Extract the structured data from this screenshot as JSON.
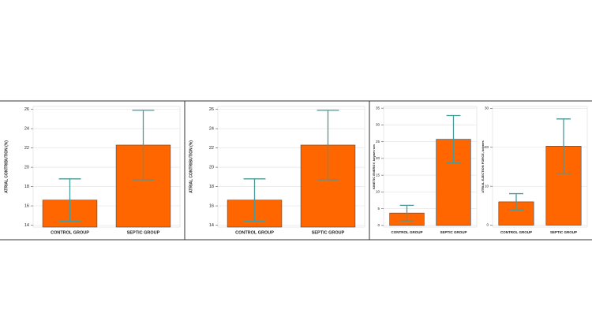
{
  "chart_data": [
    {
      "type": "bar",
      "ylabel": "ATRIAL CONTRIBUTION (%)",
      "categories": [
        "CONTROL GROUP",
        "SEPTIC GROUP"
      ],
      "values": [
        16.6,
        22.3
      ],
      "errors": [
        2.2,
        3.6
      ],
      "color": "#ff6600",
      "error_color": "#4a9a9a",
      "ylim": [
        13.8,
        26.3
      ],
      "yticks": [
        14,
        16,
        18,
        20,
        22,
        24,
        26
      ],
      "grid": true
    },
    {
      "type": "bar",
      "ylabel": "ATRIAL CONTRIBUTION (%)",
      "categories": [
        "CONTROL GROUP",
        "SEPTIC GROUP"
      ],
      "values": [
        16.6,
        22.3
      ],
      "errors": [
        2.2,
        3.6
      ],
      "color": "#ff6600",
      "error_color": "#4a9a9a",
      "ylim": [
        13.8,
        26.3
      ],
      "yticks": [
        14,
        16,
        18,
        20,
        22,
        24,
        26
      ],
      "grid": true
    },
    {
      "type": "bar",
      "ylabel": "KINETIC ENERGY, kdynes·cm",
      "categories": [
        "CONTROL GROUP",
        "SEPTIC GROUP"
      ],
      "values": [
        3.7,
        25.7
      ],
      "errors": [
        2.3,
        7.1
      ],
      "color": "#ff6600",
      "error_color": "#4a9a9a",
      "ylim": [
        -0.5,
        35.5
      ],
      "yticks": [
        0,
        5,
        10,
        15,
        20,
        25,
        30,
        35
      ],
      "grid": true
    },
    {
      "type": "bar",
      "ylabel": "ATRIAL EJECTION FORCE, kdynes",
      "categories": [
        "CONTROL GROUP",
        "SEPTIC GROUP"
      ],
      "values": [
        6.0,
        20.3
      ],
      "errors": [
        2.1,
        7.0
      ],
      "color": "#ff6600",
      "error_color": "#4a9a9a",
      "ylim": [
        -0.5,
        30.5
      ],
      "yticks": [
        0,
        10,
        20,
        30
      ],
      "grid": true
    }
  ]
}
